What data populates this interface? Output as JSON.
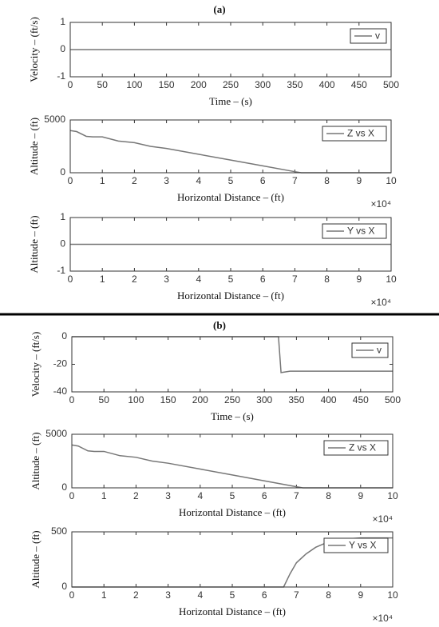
{
  "panel_labels": [
    "(a)",
    "(b)"
  ],
  "chart_data": [
    {
      "type": "line",
      "xlabel": "Time – (s)",
      "ylabel": "Velocity – (ft/s)",
      "xlim": [
        0,
        500
      ],
      "ylim": [
        -1,
        1
      ],
      "xticks": [
        0,
        50,
        100,
        150,
        200,
        250,
        300,
        350,
        400,
        450,
        500
      ],
      "yticks": [
        -1,
        0,
        1
      ],
      "x": [
        0,
        500
      ],
      "series": [
        {
          "name": "v",
          "color": "#777777",
          "values": [
            0,
            0
          ]
        }
      ],
      "legend": "upper right"
    },
    {
      "type": "line",
      "xlabel": "Horizontal Distance – (ft)",
      "ylabel": "Altitude – (ft)",
      "x_multiplier": "×10⁴",
      "xlim": [
        0,
        10
      ],
      "ylim": [
        0,
        5000
      ],
      "xticks": [
        0,
        1,
        2,
        3,
        4,
        5,
        6,
        7,
        8,
        9,
        10
      ],
      "yticks": [
        0,
        5000
      ],
      "x": [
        0,
        0.2,
        0.5,
        0.7,
        1.0,
        1.5,
        2,
        2.5,
        3,
        4,
        5,
        6,
        7,
        7.2,
        10
      ],
      "series": [
        {
          "name": "Z vs X",
          "color": "#777777",
          "values": [
            4000,
            3900,
            3450,
            3400,
            3400,
            3000,
            2850,
            2500,
            2300,
            1750,
            1200,
            650,
            100,
            0,
            0
          ]
        }
      ],
      "legend": "upper right"
    },
    {
      "type": "line",
      "xlabel": "Horizontal Distance – (ft)",
      "ylabel": "Altitude – (ft)",
      "x_multiplier": "×10⁴",
      "xlim": [
        0,
        10
      ],
      "ylim": [
        -1,
        1
      ],
      "xticks": [
        0,
        1,
        2,
        3,
        4,
        5,
        6,
        7,
        8,
        9,
        10
      ],
      "yticks": [
        -1,
        0,
        1
      ],
      "x": [
        0,
        10
      ],
      "series": [
        {
          "name": "Y vs X",
          "color": "#777777",
          "values": [
            0,
            0
          ]
        }
      ],
      "legend": "upper right"
    },
    {
      "type": "line",
      "xlabel": "Time – (s)",
      "ylabel": "Velocity – (ft/s)",
      "xlim": [
        0,
        500
      ],
      "ylim": [
        -40,
        0
      ],
      "xticks": [
        0,
        50,
        100,
        150,
        200,
        250,
        300,
        350,
        400,
        450,
        500
      ],
      "yticks": [
        -40,
        -20,
        0
      ],
      "x": [
        0,
        322,
        326,
        340,
        500
      ],
      "series": [
        {
          "name": "v",
          "color": "#777777",
          "values": [
            0,
            0,
            -26,
            -25,
            -25
          ]
        }
      ],
      "legend": "upper right"
    },
    {
      "type": "line",
      "xlabel": "Horizontal Distance – (ft)",
      "ylabel": "Altitude – (ft)",
      "x_multiplier": "×10⁴",
      "xlim": [
        0,
        10
      ],
      "ylim": [
        0,
        5000
      ],
      "xticks": [
        0,
        1,
        2,
        3,
        4,
        5,
        6,
        7,
        8,
        9,
        10
      ],
      "yticks": [
        0,
        5000
      ],
      "x": [
        0,
        0.2,
        0.5,
        0.7,
        1.0,
        1.5,
        2,
        2.5,
        3,
        4,
        5,
        6,
        7,
        7.2,
        10
      ],
      "series": [
        {
          "name": "Z vs X",
          "color": "#777777",
          "values": [
            4000,
            3900,
            3450,
            3400,
            3400,
            3000,
            2850,
            2500,
            2300,
            1750,
            1200,
            650,
            100,
            0,
            0
          ]
        }
      ],
      "legend": "upper right"
    },
    {
      "type": "line",
      "xlabel": "Horizontal Distance – (ft)",
      "ylabel": "Altitude – (ft)",
      "x_multiplier": "×10⁴",
      "xlim": [
        0,
        10
      ],
      "ylim": [
        0,
        500
      ],
      "xticks": [
        0,
        1,
        2,
        3,
        4,
        5,
        6,
        7,
        8,
        9,
        10
      ],
      "yticks": [
        0,
        500
      ],
      "x": [
        0,
        6.6,
        6.8,
        7,
        7.3,
        7.6,
        8,
        8.5,
        9,
        10
      ],
      "series": [
        {
          "name": "Y vs X",
          "color": "#777777",
          "values": [
            0,
            0,
            120,
            220,
            300,
            360,
            410,
            435,
            445,
            445
          ]
        }
      ],
      "legend": "upper right"
    }
  ]
}
